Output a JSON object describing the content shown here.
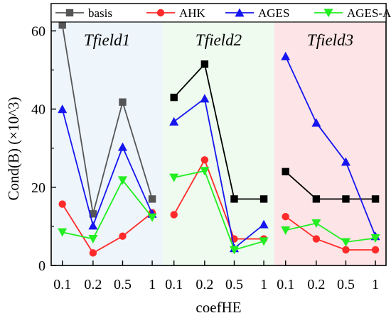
{
  "chart_data": {
    "type": "line",
    "xlabel": "coefHE",
    "ylabel": "Cond(B) (×10^3)",
    "ylim": [
      0,
      67
    ],
    "yticks": [
      0,
      20,
      40,
      60
    ],
    "grid": false,
    "legend_position": "top",
    "panels": [
      {
        "title": "Tfield1",
        "background": "#eef5fb",
        "categories": [
          "0.1",
          "0.2",
          "0.5",
          "1"
        ],
        "series": [
          {
            "name": "basis",
            "values": [
              61.5,
              13.2,
              41.8,
              17.0
            ]
          },
          {
            "name": "AHK",
            "values": [
              15.7,
              3.2,
              7.5,
              13.5
            ]
          },
          {
            "name": "AGES",
            "values": [
              40.0,
              10.2,
              30.3,
              13.2
            ]
          },
          {
            "name": "AGES-AHK",
            "values": [
              8.5,
              6.8,
              21.8,
              12.3
            ]
          }
        ]
      },
      {
        "title": "Tfield2",
        "background": "#eefbee",
        "categories": [
          "0.1",
          "0.2",
          "0.5",
          "1"
        ],
        "series": [
          {
            "name": "basis",
            "values": [
              43.0,
              51.5,
              17.0,
              17.0
            ]
          },
          {
            "name": "AHK",
            "values": [
              13.0,
              27.0,
              6.8,
              6.8
            ]
          },
          {
            "name": "AGES",
            "values": [
              36.8,
              42.7,
              4.4,
              10.5
            ]
          },
          {
            "name": "AGES-AHK",
            "values": [
              22.5,
              24.2,
              4.0,
              6.2
            ]
          }
        ]
      },
      {
        "title": "Tfield3",
        "background": "#fde4e6",
        "categories": [
          "0.1",
          "0.2",
          "0.5",
          "1"
        ],
        "series": [
          {
            "name": "basis",
            "values": [
              24.0,
              17.0,
              17.0,
              17.0
            ]
          },
          {
            "name": "AHK",
            "values": [
              12.5,
              6.8,
              4.0,
              4.0
            ]
          },
          {
            "name": "AGES",
            "values": [
              53.5,
              36.5,
              26.5,
              7.5
            ]
          },
          {
            "name": "AGES-AHK",
            "values": [
              9.0,
              10.8,
              6.0,
              7.0
            ]
          }
        ]
      }
    ],
    "series_styles": [
      {
        "name": "basis",
        "panel_colors": [
          "#555555",
          "#000000",
          "#000000"
        ],
        "marker": "square"
      },
      {
        "name": "AHK",
        "panel_colors": [
          "#ff2a2a",
          "#ff2a2a",
          "#ff2a2a"
        ],
        "marker": "circle"
      },
      {
        "name": "AGES",
        "panel_colors": [
          "#1515f0",
          "#1515f0",
          "#1515f0"
        ],
        "marker": "triangle-up"
      },
      {
        "name": "AGES-AHK",
        "panel_colors": [
          "#22ee22",
          "#22ee22",
          "#22ee22"
        ],
        "marker": "triangle-down"
      }
    ],
    "legend": [
      {
        "label": "basis",
        "color": "#555555",
        "marker": "square"
      },
      {
        "label": "AHK",
        "color": "#ff2a2a",
        "marker": "circle"
      },
      {
        "label": "AGES",
        "color": "#1515f0",
        "marker": "triangle-up"
      },
      {
        "label": "AGES-AHK",
        "color": "#22ee22",
        "marker": "triangle-down"
      }
    ]
  }
}
